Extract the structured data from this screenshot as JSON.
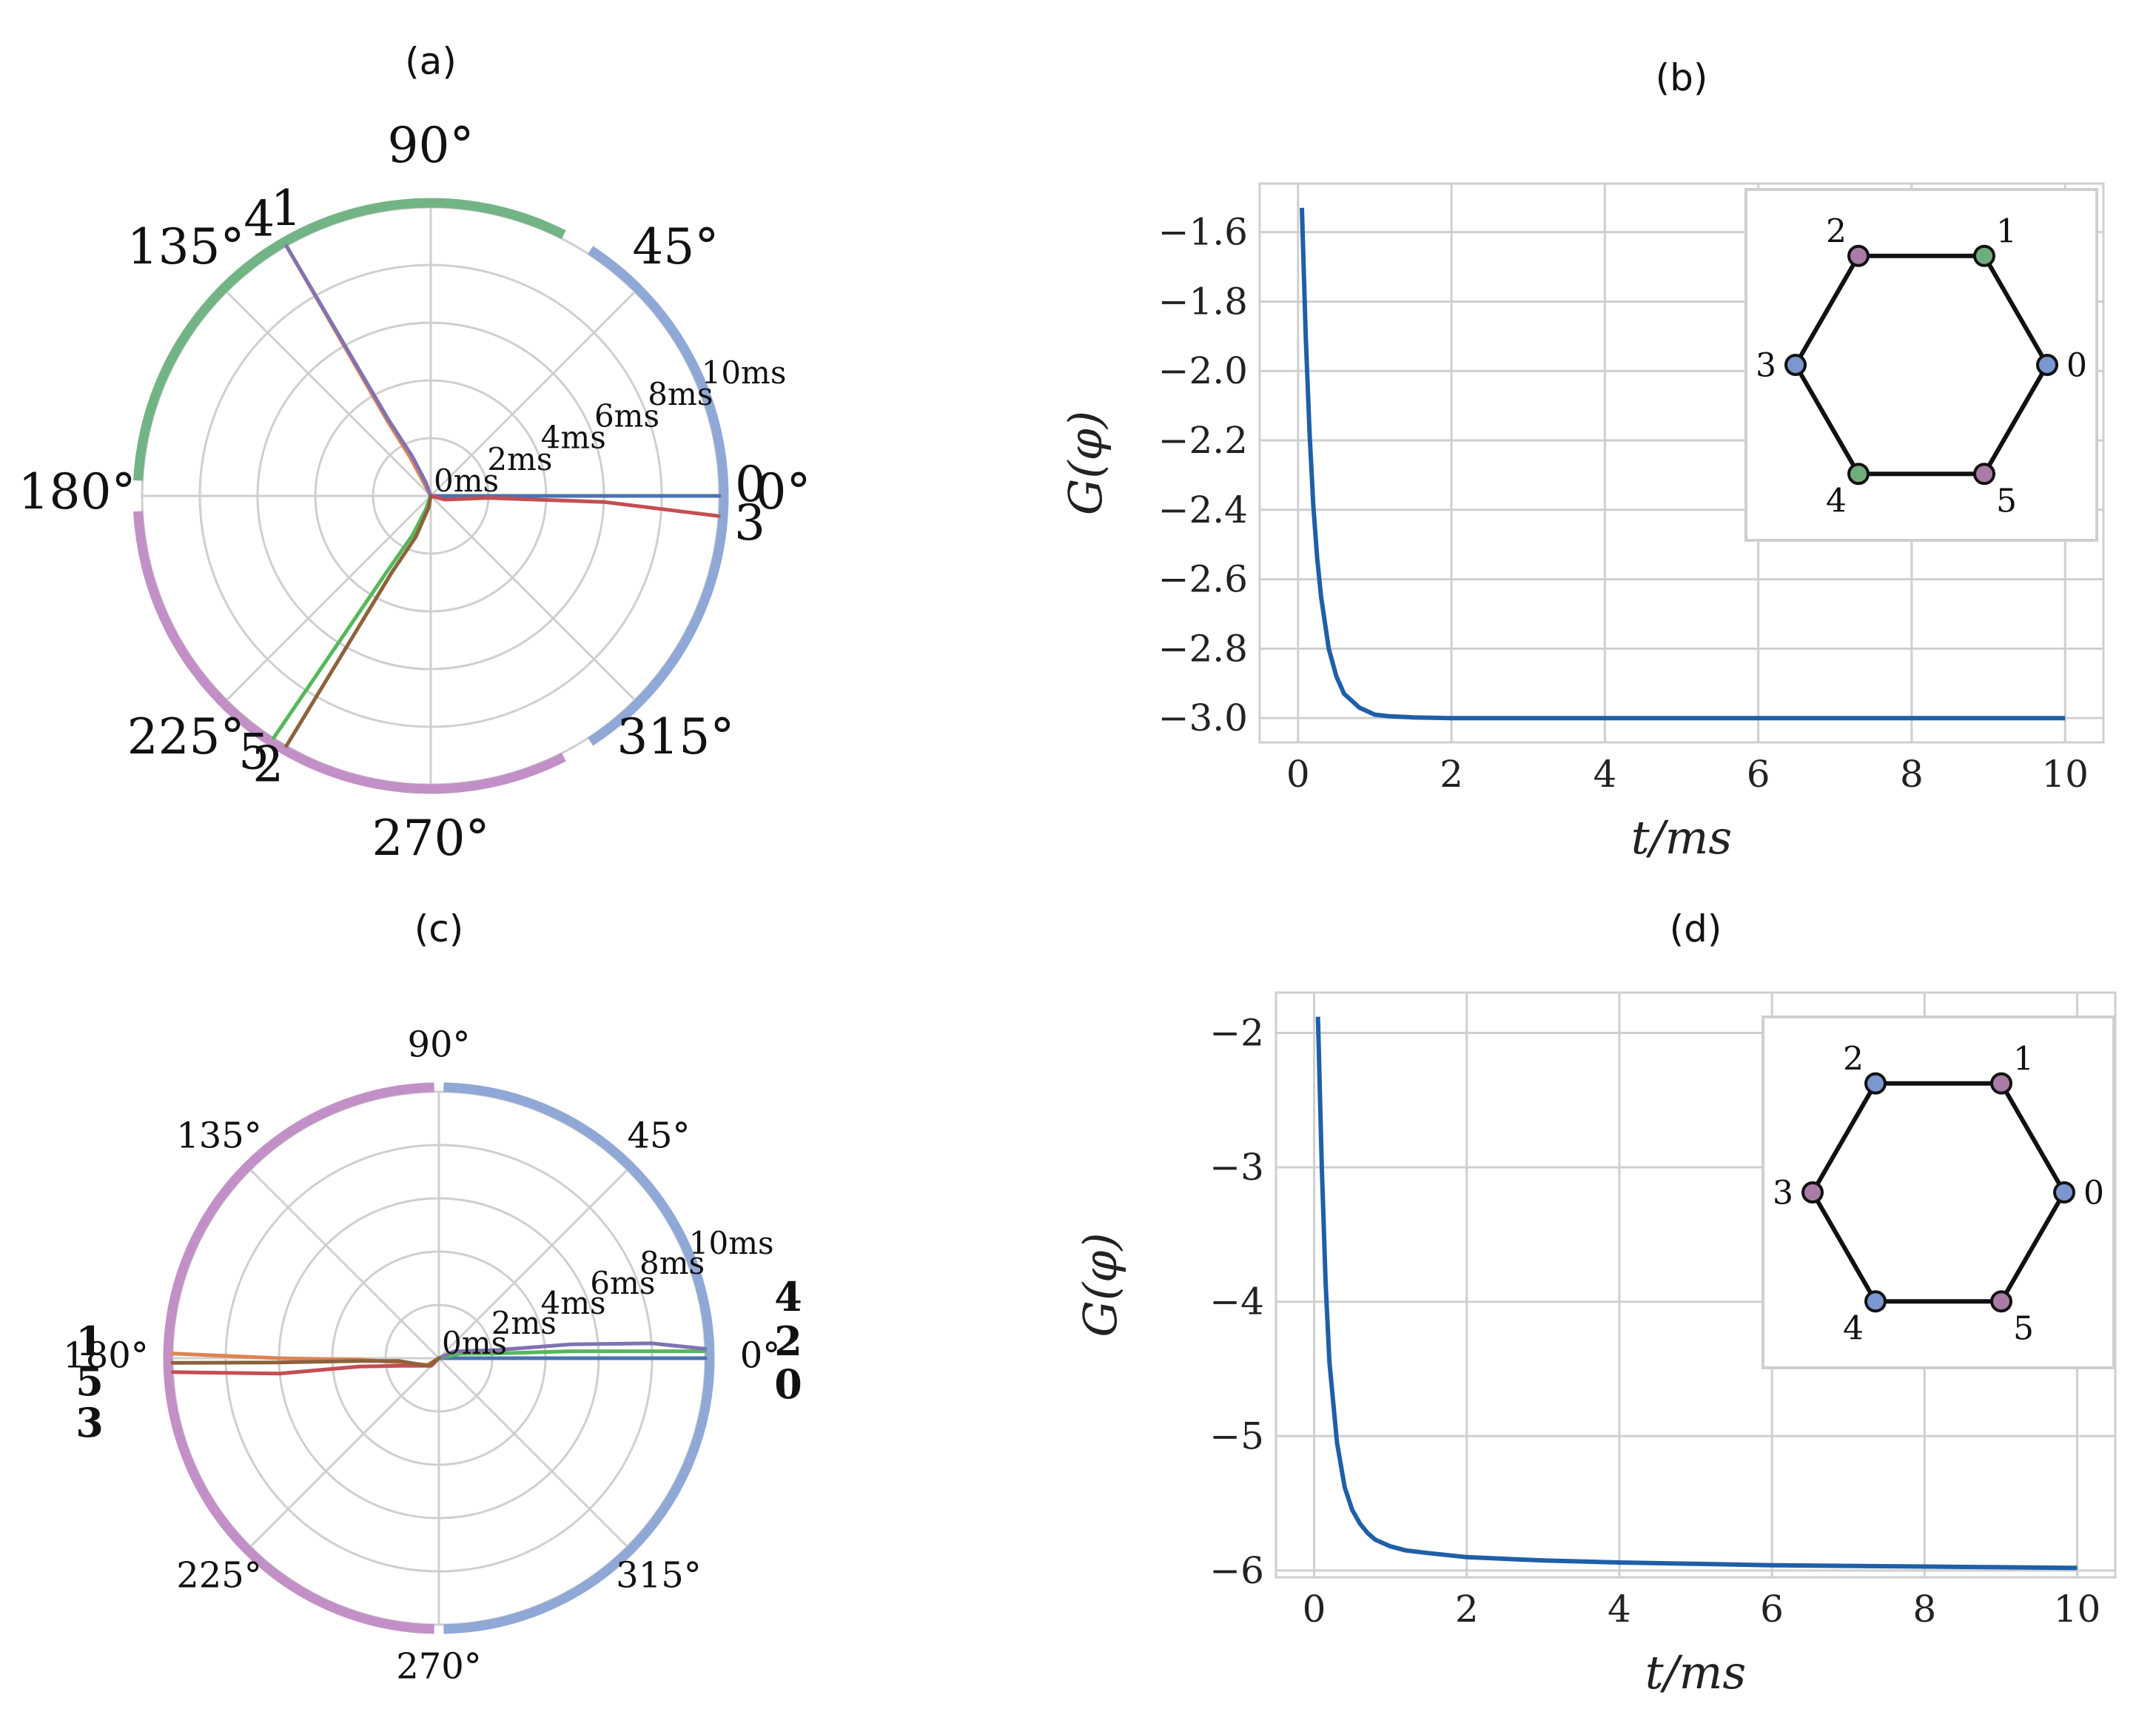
{
  "figure": {
    "panel_titles": [
      "(a)",
      "(b)",
      "(c)",
      "(d)"
    ]
  },
  "colors": {
    "osc0": "#4c72b0",
    "osc1": "#dd8452",
    "osc2": "#55b85a",
    "osc3": "#c44e52",
    "osc4": "#8172b2",
    "osc5": "#8c613c",
    "ring_blue": "#8fa8d6",
    "ring_green": "#72b485",
    "ring_purple": "#c290c6",
    "node_blue": "#7b96d0",
    "node_green": "#6fae7c",
    "node_purple": "#a97ca6",
    "curve": "#1f5fa8",
    "grid": "#cfcfcf"
  },
  "chart_data": [
    {
      "type": "polar",
      "title": "(a)",
      "r_unit": "ms",
      "r_range": [
        0,
        10
      ],
      "r_ticks": [
        "0ms",
        "2ms",
        "4ms",
        "6ms",
        "8ms",
        "10ms"
      ],
      "angle_ticks": [
        "0°",
        "45°",
        "90°",
        "135°",
        "180°",
        "225°",
        "270°",
        "315°"
      ],
      "series": [
        {
          "name": "0",
          "color_key": "osc0",
          "points": [
            [
              0,
              0
            ],
            [
              0,
              0.4
            ],
            [
              0,
              10
            ]
          ]
        },
        {
          "name": "1",
          "color_key": "osc1",
          "points": [
            [
              0,
              0
            ],
            [
              118,
              0.4
            ],
            [
              118,
              1.5
            ],
            [
              120,
              3
            ],
            [
              120,
              10
            ]
          ]
        },
        {
          "name": "2",
          "color_key": "osc2",
          "points": [
            [
              0,
              0
            ],
            [
              250,
              0.5
            ],
            [
              245,
              1.5
            ],
            [
              240,
              3
            ],
            [
              237,
              10
            ]
          ]
        },
        {
          "name": "3",
          "color_key": "osc3",
          "points": [
            [
              0,
              0
            ],
            [
              345,
              0.5
            ],
            [
              358,
              2
            ],
            [
              358,
              6
            ],
            [
              356,
              10
            ]
          ]
        },
        {
          "name": "4",
          "color_key": "osc4",
          "points": [
            [
              0,
              0
            ],
            [
              110,
              0.5
            ],
            [
              115,
              1.5
            ],
            [
              119,
              3
            ],
            [
              120,
              10
            ]
          ]
        },
        {
          "name": "5",
          "color_key": "osc5",
          "points": [
            [
              0,
              0
            ],
            [
              260,
              0.4
            ],
            [
              250,
              1.5
            ],
            [
              243,
              3
            ],
            [
              240,
              10
            ]
          ]
        }
      ],
      "end_labels": [
        {
          "text": "0",
          "color_key": "osc0",
          "angle": 0,
          "offset": -10
        },
        {
          "text": "3",
          "color_key": "osc3",
          "angle": 356,
          "offset": 12
        },
        {
          "text": "4",
          "color_key": "osc4",
          "angle": 121.5,
          "offset": 0
        },
        {
          "text": "1",
          "color_key": "osc1",
          "angle": 117.5,
          "offset": 0
        },
        {
          "text": "2",
          "color_key": "osc2",
          "angle": 238.5,
          "offset": 0
        },
        {
          "text": "5",
          "color_key": "osc5",
          "angle": 234.5,
          "offset": 0
        }
      ],
      "ring_arcs": [
        {
          "color_key": "ring_blue",
          "from": -57,
          "to": 57
        },
        {
          "color_key": "ring_green",
          "from": 63,
          "to": 177
        },
        {
          "color_key": "ring_purple",
          "from": 183,
          "to": 297
        }
      ]
    },
    {
      "type": "line",
      "title": "(b)",
      "xlabel": "t/ms",
      "ylabel": "G(φ)",
      "xlim": [
        -0.5,
        10.5
      ],
      "ylim": [
        -3.07,
        -1.46
      ],
      "xticks": [
        0,
        2,
        4,
        6,
        8,
        10
      ],
      "yticks": [
        -1.6,
        -1.8,
        -2.0,
        -2.2,
        -2.4,
        -2.6,
        -2.8,
        -3.0
      ],
      "ytick_labels": [
        "−1.6",
        "−1.8",
        "−2.0",
        "−2.2",
        "−2.4",
        "−2.6",
        "−2.8",
        "−3.0"
      ],
      "series": [
        {
          "x": [
            0.05,
            0.1,
            0.15,
            0.2,
            0.25,
            0.3,
            0.4,
            0.5,
            0.6,
            0.7,
            0.8,
            1.0,
            1.2,
            1.5,
            2.0,
            3.0,
            5.0,
            7.0,
            10.0
          ],
          "y": [
            -1.53,
            -1.9,
            -2.18,
            -2.39,
            -2.54,
            -2.65,
            -2.8,
            -2.88,
            -2.93,
            -2.95,
            -2.97,
            -2.99,
            -2.995,
            -2.998,
            -3.0,
            -3.0,
            -3.0,
            -3.0,
            -3.0
          ]
        }
      ],
      "inset": {
        "nodes": [
          "0",
          "1",
          "2",
          "3",
          "4",
          "5"
        ],
        "node_colors": [
          "node_blue",
          "node_green",
          "node_purple",
          "node_blue",
          "node_green",
          "node_purple"
        ]
      }
    },
    {
      "type": "polar",
      "title": "(c)",
      "r_unit": "ms",
      "r_range": [
        0,
        10
      ],
      "r_ticks": [
        "0ms",
        "2ms",
        "4ms",
        "6ms",
        "8ms",
        "10ms"
      ],
      "angle_ticks": [
        "0°",
        "45°",
        "90°",
        "135°",
        "180°",
        "225°",
        "270°",
        "315°"
      ],
      "series": [
        {
          "name": "0",
          "color_key": "osc0",
          "points": [
            [
              0,
              0
            ],
            [
              0,
              10
            ]
          ]
        },
        {
          "name": "1",
          "color_key": "osc1",
          "points": [
            [
              0,
              0
            ],
            [
              210,
              0.5
            ],
            [
              186,
              1.5
            ],
            [
              181,
              3
            ],
            [
              180,
              6
            ],
            [
              179,
              10
            ]
          ]
        },
        {
          "name": "2",
          "color_key": "osc2",
          "points": [
            [
              0,
              0
            ],
            [
              12,
              0.8
            ],
            [
              5,
              2
            ],
            [
              3,
              5
            ],
            [
              1.5,
              10
            ]
          ]
        },
        {
          "name": "3",
          "color_key": "osc3",
          "points": [
            [
              0,
              0
            ],
            [
              225,
              0.4
            ],
            [
              191,
              1.5
            ],
            [
              186,
              3
            ],
            [
              185.5,
              6
            ],
            [
              183,
              10
            ]
          ]
        },
        {
          "name": "4",
          "color_key": "osc4",
          "points": [
            [
              0,
              0
            ],
            [
              25,
              0.6
            ],
            [
              8,
              2.2
            ],
            [
              6,
              5
            ],
            [
              4,
              8
            ],
            [
              2,
              10
            ]
          ]
        },
        {
          "name": "5",
          "color_key": "osc5",
          "points": [
            [
              0,
              0
            ],
            [
              215,
              0.5
            ],
            [
              184,
              1.5
            ],
            [
              182,
              3
            ],
            [
              181.5,
              6
            ],
            [
              181,
              10
            ]
          ]
        }
      ],
      "end_labels": [
        {
          "text": "4",
          "color_key": "osc4",
          "angle": 0,
          "offset": -78
        },
        {
          "text": "2",
          "color_key": "osc2",
          "angle": 0,
          "offset": -18
        },
        {
          "text": "0",
          "color_key": "osc0",
          "angle": 0,
          "offset": 40
        },
        {
          "text": "1",
          "color_key": "osc1",
          "angle": 180,
          "offset": -18
        },
        {
          "text": "5",
          "color_key": "osc5",
          "angle": 180,
          "offset": 36
        },
        {
          "text": "3",
          "color_key": "osc3",
          "angle": 180,
          "offset": 92
        }
      ],
      "ring_arcs": [
        {
          "color_key": "ring_blue",
          "from": -89,
          "to": 89
        },
        {
          "color_key": "ring_purple",
          "from": 91,
          "to": 269
        }
      ]
    },
    {
      "type": "line",
      "title": "(d)",
      "xlabel": "t/ms",
      "ylabel": "G(φ)",
      "xlim": [
        -0.5,
        10.5
      ],
      "ylim": [
        -6.05,
        -1.7
      ],
      "xticks": [
        0,
        2,
        4,
        6,
        8,
        10
      ],
      "yticks": [
        -2,
        -3,
        -4,
        -5,
        -6
      ],
      "ytick_labels": [
        "−2",
        "−3",
        "−4",
        "−5",
        "−6"
      ],
      "series": [
        {
          "x": [
            0.05,
            0.1,
            0.15,
            0.2,
            0.3,
            0.4,
            0.5,
            0.6,
            0.7,
            0.8,
            1.0,
            1.2,
            1.5,
            2.0,
            3.0,
            4.0,
            5.0,
            6.0,
            7.0,
            8.0,
            9.0,
            10.0
          ],
          "y": [
            -1.88,
            -3.0,
            -3.85,
            -4.45,
            -5.05,
            -5.38,
            -5.55,
            -5.65,
            -5.72,
            -5.77,
            -5.82,
            -5.85,
            -5.87,
            -5.9,
            -5.925,
            -5.94,
            -5.95,
            -5.96,
            -5.965,
            -5.97,
            -5.975,
            -5.98
          ]
        }
      ],
      "inset": {
        "nodes": [
          "0",
          "1",
          "2",
          "3",
          "4",
          "5"
        ],
        "node_colors": [
          "node_blue",
          "node_purple",
          "node_blue",
          "node_purple",
          "node_blue",
          "node_purple"
        ]
      }
    }
  ]
}
